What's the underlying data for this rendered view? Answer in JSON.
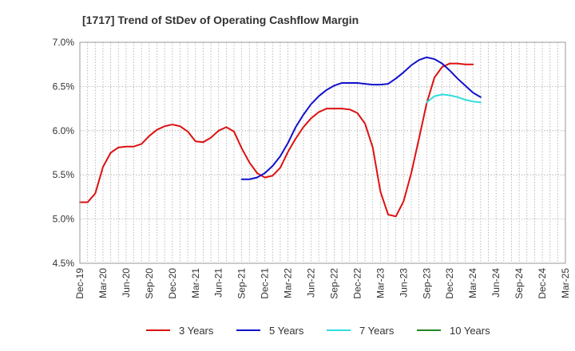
{
  "chart_data": {
    "type": "line",
    "title": "[1717]  Trend of StDev of Operating Cashflow Margin",
    "xlabel": "",
    "ylabel": "",
    "ylim": [
      4.5,
      7.0
    ],
    "y_ticks": [
      "7.0%",
      "6.5%",
      "6.0%",
      "5.5%",
      "5.0%",
      "4.5%"
    ],
    "y_tick_values": [
      7.0,
      6.5,
      6.0,
      5.5,
      5.0,
      4.5
    ],
    "x_ticks": [
      "Dec-19",
      "Mar-20",
      "Jun-20",
      "Sep-20",
      "Dec-20",
      "Mar-21",
      "Jun-21",
      "Sep-21",
      "Dec-21",
      "Mar-22",
      "Jun-22",
      "Sep-22",
      "Dec-22",
      "Mar-23",
      "Jun-23",
      "Sep-23",
      "Dec-23",
      "Mar-24",
      "Jun-24",
      "Sep-24",
      "Dec-24",
      "Mar-25"
    ],
    "grid": true,
    "legend_position": "bottom",
    "series": [
      {
        "name": "3 Years",
        "color": "#dd1111",
        "start_index": 0,
        "values": [
          5.19,
          5.19,
          5.29,
          5.59,
          5.75,
          5.81,
          5.82,
          5.82,
          5.85,
          5.94,
          6.01,
          6.05,
          6.07,
          6.05,
          5.99,
          5.88,
          5.87,
          5.92,
          6.0,
          6.04,
          5.99,
          5.8,
          5.64,
          5.52,
          5.47,
          5.49,
          5.58,
          5.76,
          5.91,
          6.04,
          6.14,
          6.21,
          6.25,
          6.25,
          6.25,
          6.24,
          6.2,
          6.08,
          5.81,
          5.31,
          5.05,
          5.03,
          5.2,
          5.52,
          5.91,
          6.31,
          6.6,
          6.72,
          6.76,
          6.76,
          6.75,
          6.75
        ]
      },
      {
        "name": "5 Years",
        "color": "#1111cc",
        "start_index": 21,
        "values": [
          5.45,
          5.45,
          5.47,
          5.52,
          5.6,
          5.71,
          5.86,
          6.04,
          6.18,
          6.3,
          6.39,
          6.46,
          6.51,
          6.54,
          6.54,
          6.54,
          6.53,
          6.52,
          6.52,
          6.53,
          6.59,
          6.66,
          6.74,
          6.8,
          6.83,
          6.81,
          6.76,
          6.68,
          6.59,
          6.51,
          6.43,
          6.38
        ]
      },
      {
        "name": "7 Years",
        "color": "#33dddd",
        "start_index": 45,
        "values": [
          6.32,
          6.39,
          6.41,
          6.4,
          6.38,
          6.35,
          6.33,
          6.32
        ]
      },
      {
        "name": "10 Years",
        "color": "#228822",
        "start_index": 0,
        "values": []
      }
    ]
  }
}
